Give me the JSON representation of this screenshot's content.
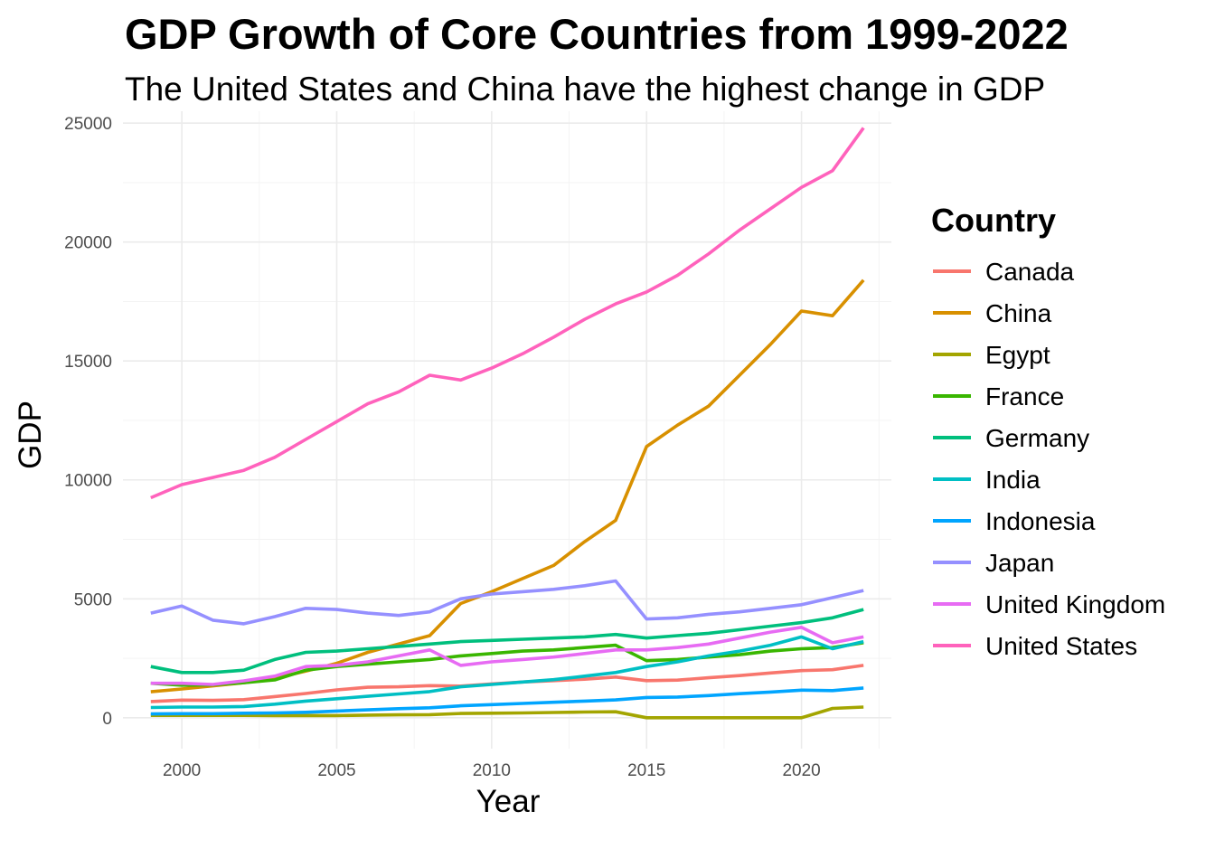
{
  "chart_data": {
    "type": "line",
    "title": "GDP Growth of Core Countries from 1999-2022",
    "subtitle": "The United States and China have the highest change in GDP",
    "xlabel": "Year",
    "ylabel": "GDP",
    "legend_title": "Country",
    "legend_position": "right",
    "grid": true,
    "xlim": [
      1998.1,
      2022.9
    ],
    "ylim": [
      -1300,
      25500
    ],
    "x_ticks": [
      2000,
      2005,
      2010,
      2015,
      2020
    ],
    "y_ticks": [
      0,
      5000,
      10000,
      15000,
      20000,
      25000
    ],
    "x": [
      1999,
      2000,
      2001,
      2002,
      2003,
      2004,
      2005,
      2006,
      2007,
      2008,
      2009,
      2010,
      2011,
      2012,
      2013,
      2014,
      2015,
      2016,
      2017,
      2018,
      2019,
      2020,
      2021,
      2022
    ],
    "series": [
      {
        "name": "Canada",
        "color": "#F8766D",
        "values": [
          680,
          740,
          730,
          760,
          890,
          1020,
          1170,
          1280,
          1300,
          1350,
          1330,
          1420,
          1500,
          1560,
          1620,
          1710,
          1560,
          1580,
          1680,
          1770,
          1880,
          1980,
          2020,
          2200
        ]
      },
      {
        "name": "China",
        "color": "#D89000",
        "values": [
          1090,
          1210,
          1340,
          1470,
          1660,
          1960,
          2290,
          2750,
          3100,
          3450,
          4800,
          5300,
          5850,
          6400,
          7400,
          8300,
          11400,
          12300,
          13100,
          14400,
          15700,
          17100,
          16900,
          18400
        ]
      },
      {
        "name": "Egypt",
        "color": "#A3A500",
        "values": [
          100,
          100,
          100,
          100,
          90,
          90,
          90,
          110,
          120,
          130,
          180,
          190,
          200,
          220,
          240,
          250,
          0,
          0,
          0,
          0,
          0,
          0,
          390,
          450
        ]
      },
      {
        "name": "France",
        "color": "#39B600",
        "values": [
          1450,
          1370,
          1380,
          1470,
          1590,
          2000,
          2150,
          2250,
          2350,
          2450,
          2600,
          2700,
          2800,
          2850,
          2950,
          3050,
          2400,
          2450,
          2550,
          2650,
          2800,
          2900,
          2950,
          3150
        ]
      },
      {
        "name": "Germany",
        "color": "#00BF7D",
        "values": [
          2150,
          1900,
          1900,
          2000,
          2450,
          2750,
          2800,
          2900,
          3000,
          3100,
          3200,
          3250,
          3300,
          3350,
          3400,
          3500,
          3350,
          3450,
          3550,
          3700,
          3850,
          4000,
          4200,
          4550
        ]
      },
      {
        "name": "India",
        "color": "#00BFC4",
        "values": [
          430,
          450,
          450,
          470,
          570,
          700,
          800,
          900,
          1000,
          1100,
          1300,
          1400,
          1500,
          1600,
          1750,
          1900,
          2150,
          2350,
          2600,
          2800,
          3050,
          3400,
          2900,
          3200
        ]
      },
      {
        "name": "Indonesia",
        "color": "#00A5FF",
        "values": [
          160,
          170,
          170,
          190,
          200,
          230,
          280,
          330,
          380,
          420,
          500,
          550,
          600,
          650,
          700,
          750,
          850,
          870,
          930,
          1010,
          1080,
          1160,
          1140,
          1250
        ]
      },
      {
        "name": "Japan",
        "color": "#9590FF",
        "values": [
          4400,
          4700,
          4100,
          3950,
          4250,
          4600,
          4550,
          4400,
          4300,
          4450,
          5000,
          5200,
          5300,
          5400,
          5550,
          5750,
          4150,
          4200,
          4350,
          4450,
          4600,
          4750,
          5050,
          5350
        ]
      },
      {
        "name": "United Kingdom",
        "color": "#E76BF3",
        "values": [
          1450,
          1450,
          1400,
          1550,
          1750,
          2150,
          2200,
          2350,
          2600,
          2850,
          2200,
          2350,
          2450,
          2550,
          2700,
          2850,
          2850,
          2950,
          3100,
          3350,
          3600,
          3800,
          3150,
          3400
        ]
      },
      {
        "name": "United States",
        "color": "#FF62BC",
        "values": [
          9250,
          9800,
          10100,
          10400,
          10950,
          11700,
          12450,
          13200,
          13700,
          14400,
          14200,
          14700,
          15300,
          16000,
          16750,
          17400,
          17900,
          18600,
          19500,
          20500,
          21400,
          22300,
          23000,
          24800
        ]
      }
    ]
  }
}
